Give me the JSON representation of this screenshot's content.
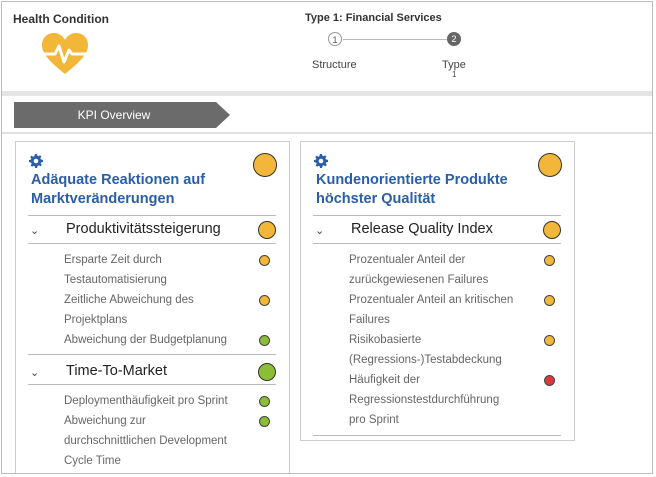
{
  "header": {
    "health_title": "Health Condition",
    "type_title": "Type 1: Financial Services",
    "steps": [
      {
        "number": "1",
        "label": "Structure",
        "active": false
      },
      {
        "number": "2",
        "label": "Type",
        "active": true
      }
    ],
    "step_sub": "1",
    "heart_icon": "heart-pulse-icon"
  },
  "tab": {
    "label": "KPI Overview"
  },
  "colors": {
    "yellow": "#f2b738",
    "green": "#8cbd37",
    "red": "#d83b3b",
    "blue": "#2a5ea8",
    "tab_gray": "#6b6b6b"
  },
  "panels": [
    {
      "title_line1": "Adäquate Reaktionen auf",
      "title_line2": "Marktveränderungen",
      "status": "yellow",
      "sections": [
        {
          "title": "Produktivitätssteigerung",
          "status": "yellow",
          "items": [
            {
              "line1": "Ersparte Zeit durch",
              "line2": "Testautomatisierung",
              "status": "yellow"
            },
            {
              "line1": "Zeitliche Abweichung des",
              "line2": "Projektplans",
              "status": "yellow"
            },
            {
              "line1": "Abweichung der Budgetplanung",
              "status": "green"
            }
          ]
        },
        {
          "title": "Time-To-Market",
          "status": "green",
          "items": [
            {
              "line1": "Deploymenthäufigkeit pro Sprint",
              "status": "green"
            },
            {
              "line1": "Abweichung zur",
              "line2": "durchschnittlichen Development",
              "line3": "Cycle Time",
              "status": "green"
            }
          ]
        }
      ]
    },
    {
      "title_line1": "Kundenorientierte Produkte",
      "title_line2": "höchster Qualität",
      "status": "yellow",
      "sections": [
        {
          "title": "Release Quality Index",
          "status": "yellow",
          "items": [
            {
              "line1": "Prozentualer Anteil der",
              "line2": "zurückgewiesenen Failures",
              "status": "yellow"
            },
            {
              "line1": "Prozentualer Anteil an kritischen",
              "line2": "Failures",
              "status": "yellow"
            },
            {
              "line1": "Risikobasierte",
              "line2": "(Regressions-)Testabdeckung",
              "status": "yellow"
            },
            {
              "line1": "Häufigkeit der",
              "line2": "Regressionstestdurchführung",
              "line3": "pro Sprint",
              "status": "red"
            }
          ]
        }
      ]
    }
  ]
}
